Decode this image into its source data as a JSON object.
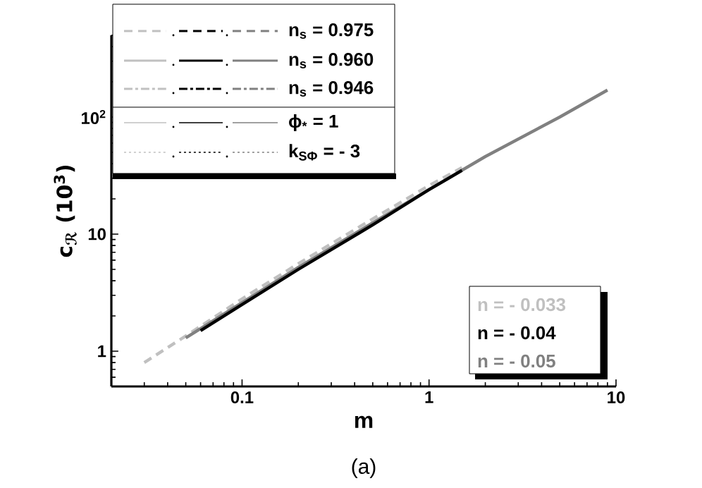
{
  "chart_data": {
    "type": "line",
    "xlabel": "m",
    "ylabel": "c$_{ℛ}$ (10$^{3}$)",
    "log": "xy",
    "xlim": [
      0.02,
      10
    ],
    "ylim": [
      0.5,
      500
    ],
    "xticks": [
      0.1,
      1,
      10
    ],
    "yticks": [
      1,
      10,
      {
        "value": 100,
        "label": "10$^{2}$"
      }
    ],
    "grid": false,
    "legend": "bottom right",
    "marker": "none",
    "annotations": [
      "(a)",
      "n$_{s}$ = 0.975",
      "n$_{s}$ = 0.960",
      "n$_{s}$ = 0.946",
      "ϕ$_{*}$ = 1",
      "k$_{SΦ}$ = - 3"
    ],
    "series": [
      {
        "name": "n = - 0.033",
        "color": "#c0c0c0",
        "line_style": "dashed",
        "x": [
          0.03,
          0.05,
          0.1,
          0.2,
          0.5,
          1,
          1.5
        ],
        "values": [
          0.8,
          1.35,
          2.8,
          5.6,
          13.5,
          26,
          37
        ]
      },
      {
        "name": "n = - 0.04",
        "color": "#000000",
        "line_style": "solid",
        "x": [
          0.06,
          0.1,
          0.2,
          0.5,
          1,
          1.5
        ],
        "values": [
          1.5,
          2.5,
          5,
          12,
          24,
          35
        ]
      },
      {
        "name": "n = - 0.05",
        "color": "#808080",
        "line_style": "solid",
        "x": [
          0.05,
          0.1,
          0.2,
          0.5,
          1,
          2,
          5,
          9
        ],
        "values": [
          1.3,
          2.6,
          5.2,
          12.5,
          24,
          46,
          100,
          170
        ]
      }
    ]
  }
}
